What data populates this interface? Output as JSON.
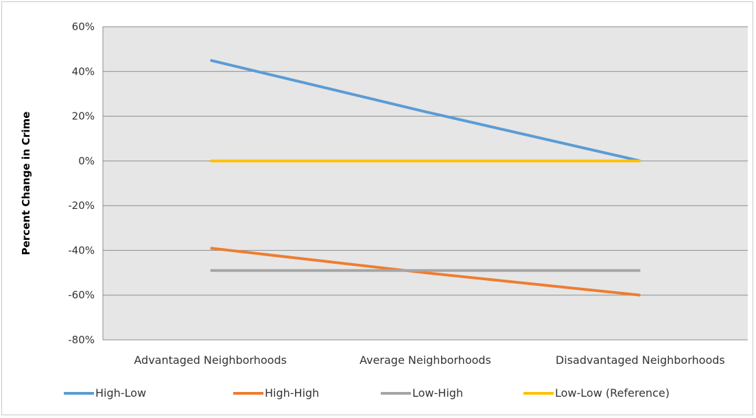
{
  "chart_data": {
    "type": "line",
    "categories": [
      "Advantaged Neighborhoods",
      "Average Neighborhoods",
      "Disadvantaged Neighborhoods"
    ],
    "ylabel": "Percent Change in Crime",
    "xlabel": "",
    "ylim": [
      -80,
      60
    ],
    "yticks": [
      60,
      40,
      20,
      0,
      -20,
      -40,
      -60,
      -80
    ],
    "ytick_labels": [
      "60%",
      "40%",
      "20%",
      "0%",
      "-20%",
      "-40%",
      "-60%",
      "-80%"
    ],
    "grid": true,
    "legend_position": "bottom",
    "plot_background": "#e6e6e6",
    "series": [
      {
        "name": "High-Low",
        "color": "#5b9bd5",
        "values": [
          45,
          22,
          0
        ]
      },
      {
        "name": "High-High",
        "color": "#ed7d31",
        "values": [
          -39,
          -50,
          -60
        ]
      },
      {
        "name": "Low-High",
        "color": "#a5a5a5",
        "values": [
          -49,
          -49,
          -49
        ]
      },
      {
        "name": "Low-Low (Reference)",
        "color": "#ffc000",
        "values": [
          0,
          0,
          0
        ]
      }
    ]
  }
}
